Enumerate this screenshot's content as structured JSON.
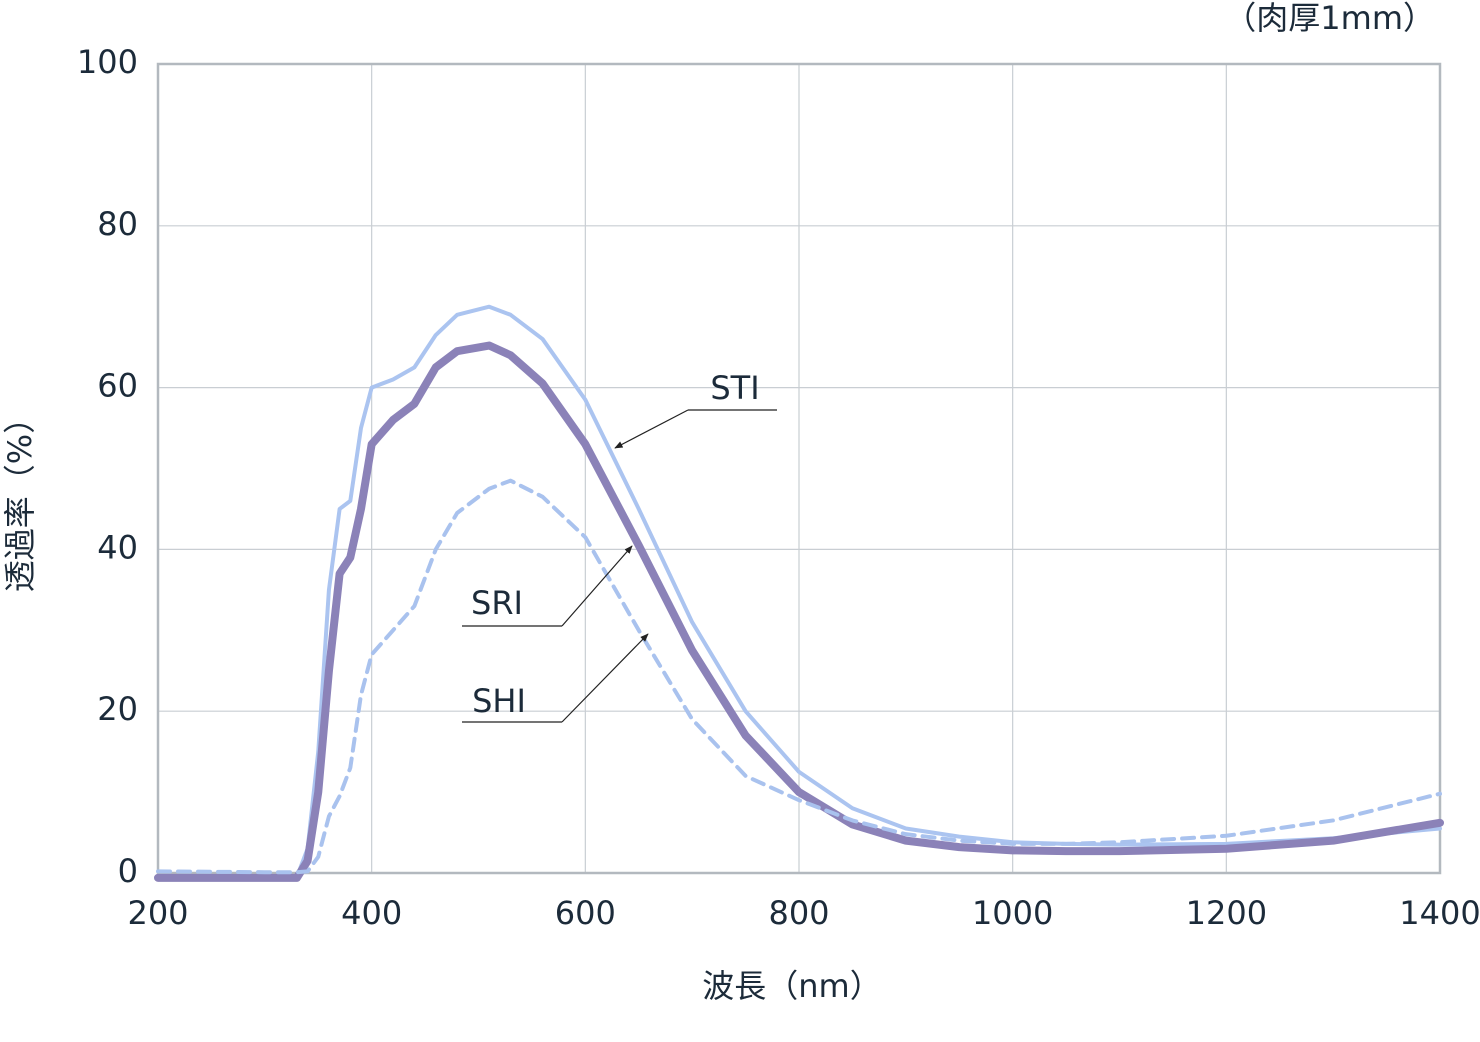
{
  "chart_data": {
    "type": "line",
    "note": "（肉厚1mm）",
    "xlabel": "波長（nm）",
    "ylabel": "透過率（%）",
    "x": [
      200,
      300,
      330,
      340,
      350,
      360,
      370,
      380,
      390,
      400,
      420,
      440,
      460,
      480,
      510,
      530,
      560,
      600,
      650,
      700,
      750,
      800,
      850,
      900,
      950,
      1000,
      1050,
      1100,
      1200,
      1300,
      1400
    ],
    "series": [
      {
        "name": "STI",
        "color": "#abc4f0",
        "linestyle": "solid",
        "values": [
          -0.5,
          -0.5,
          -0.5,
          3,
          15,
          35,
          45,
          46,
          55,
          60,
          61,
          62.5,
          66.5,
          69,
          70,
          69,
          66,
          58.5,
          45,
          31,
          20,
          12.5,
          8,
          5.5,
          4.5,
          3.8,
          3.6,
          3.5,
          3.6,
          4.3,
          5.5
        ]
      },
      {
        "name": "SRI",
        "color": "#8b82b8",
        "linestyle": "bold",
        "values": [
          -0.6,
          -0.6,
          -0.6,
          1.5,
          10,
          25,
          37,
          39,
          45,
          53,
          56,
          58,
          62.5,
          64.5,
          65.2,
          64,
          60.5,
          53,
          40.5,
          27.5,
          17,
          10,
          6,
          4,
          3.2,
          2.8,
          2.7,
          2.7,
          3,
          4,
          6.2
        ]
      },
      {
        "name": "SHI",
        "color": "#a9c2ee",
        "linestyle": "dashed",
        "values": [
          0.2,
          0.1,
          0.1,
          0.2,
          2,
          7,
          9.5,
          13,
          22,
          27,
          30,
          33,
          40,
          44.5,
          47.5,
          48.5,
          46.5,
          41.5,
          30,
          19,
          12,
          9,
          6.5,
          4.8,
          4,
          3.6,
          3.6,
          3.8,
          4.6,
          6.5,
          9.8
        ]
      }
    ],
    "xlim": [
      200,
      1400
    ],
    "xticks": [
      200,
      400,
      600,
      800,
      1000,
      1200,
      1400
    ],
    "ylim": [
      0,
      100
    ],
    "yticks": [
      0,
      20,
      40,
      60,
      80,
      100
    ],
    "grid": true
  }
}
